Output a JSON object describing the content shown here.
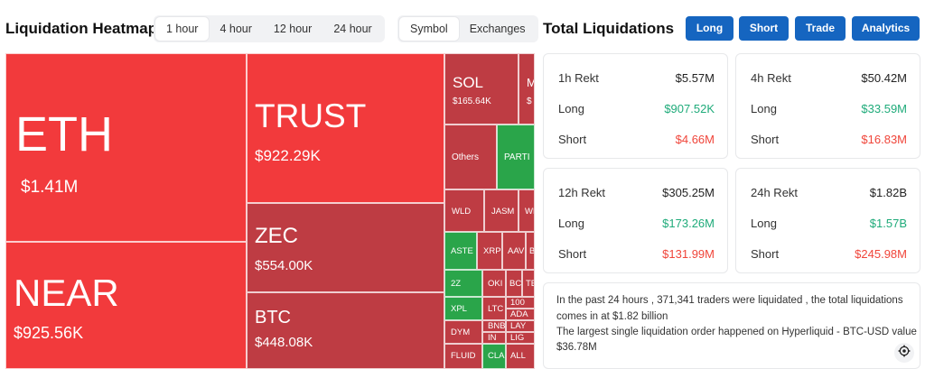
{
  "heatmap": {
    "title": "Liquidation Heatmap",
    "time_options": [
      "1 hour",
      "4 hour",
      "12 hour",
      "24 hour"
    ],
    "mode_options": [
      "Symbol",
      "Exchanges"
    ],
    "tiles": [
      {
        "symbol": "ETH",
        "value": "$1.41M"
      },
      {
        "symbol": "NEAR",
        "value": "$925.56K"
      },
      {
        "symbol": "TRUST",
        "value": "$922.29K"
      },
      {
        "symbol": "ZEC",
        "value": "$554.00K"
      },
      {
        "symbol": "BTC",
        "value": "$448.08K"
      },
      {
        "symbol": "SOL",
        "value": "$165.64K"
      },
      {
        "symbol": "M",
        "value": "$"
      },
      {
        "symbol": "Others",
        "value": ""
      },
      {
        "symbol": "PARTI",
        "value": ""
      },
      {
        "symbol": "WLD",
        "value": ""
      },
      {
        "symbol": "JASM",
        "value": ""
      },
      {
        "symbol": "WL",
        "value": ""
      },
      {
        "symbol": "ASTE",
        "value": ""
      },
      {
        "symbol": "XRP",
        "value": ""
      },
      {
        "symbol": "AAV",
        "value": ""
      },
      {
        "symbol": "B",
        "value": ""
      },
      {
        "symbol": "2Z",
        "value": ""
      },
      {
        "symbol": "OKI",
        "value": ""
      },
      {
        "symbol": "BC",
        "value": ""
      },
      {
        "symbol": "TE",
        "value": ""
      },
      {
        "symbol": "XPL",
        "value": ""
      },
      {
        "symbol": "LTC",
        "value": ""
      },
      {
        "symbol": "100",
        "value": ""
      },
      {
        "symbol": "ADA",
        "value": ""
      },
      {
        "symbol": "DYM",
        "value": ""
      },
      {
        "symbol": "BNB",
        "value": ""
      },
      {
        "symbol": "LAY",
        "value": ""
      },
      {
        "symbol": "IN",
        "value": ""
      },
      {
        "symbol": "LIG",
        "value": ""
      },
      {
        "symbol": "FLUID",
        "value": ""
      },
      {
        "symbol": "CLA",
        "value": ""
      },
      {
        "symbol": "ALL",
        "value": ""
      }
    ]
  },
  "totals": {
    "title": "Total Liquidations",
    "buttons": [
      "Long",
      "Short",
      "Trade",
      "Analytics"
    ],
    "cards": [
      {
        "label": "1h Rekt",
        "total": "$5.57M",
        "long_label": "Long",
        "long": "$907.52K",
        "short_label": "Short",
        "short": "$4.66M"
      },
      {
        "label": "4h Rekt",
        "total": "$50.42M",
        "long_label": "Long",
        "long": "$33.59M",
        "short_label": "Short",
        "short": "$16.83M"
      },
      {
        "label": "12h Rekt",
        "total": "$305.25M",
        "long_label": "Long",
        "long": "$173.26M",
        "short_label": "Short",
        "short": "$131.99M"
      },
      {
        "label": "24h Rekt",
        "total": "$1.82B",
        "long_label": "Long",
        "long": "$1.57B",
        "short_label": "Short",
        "short": "$245.98M"
      }
    ],
    "summary": [
      "In the past 24 hours , 371,341 traders were liquidated , the total liquidations",
      "comes in at $1.82 billion",
      "The largest single liquidation order happened on Hyperliquid - BTC-USD value",
      "$36.78M"
    ]
  },
  "colors": {
    "accent": "#1565c0",
    "liq_bright": "#f23a3c",
    "liq_dark": "#be3c43",
    "liq_green": "#2aa54a",
    "long_value": "#1fab7a",
    "short_value": "#f0453a"
  }
}
